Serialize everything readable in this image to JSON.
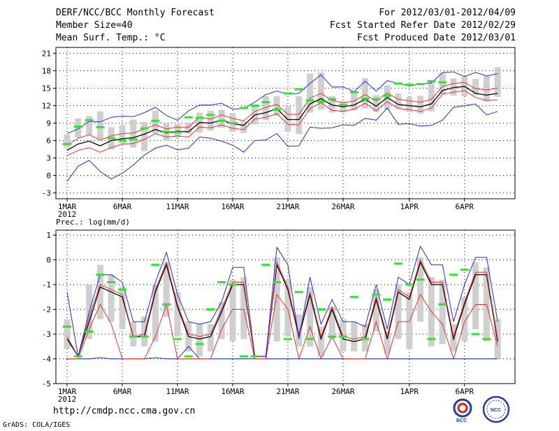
{
  "header": {
    "title": "DERF/NCC/BCC Monthly Forecast",
    "member_size": "Member Size=40",
    "variable": "Mean Surf. Temp.: °C",
    "forecast_period": "For 2012/03/01-2012/04/09",
    "started_refer": "Fcst Started Refer Date 2012/02/29",
    "produced": "Fcst Produced Date 2012/03/01"
  },
  "footer": {
    "url": "http://cmdp.ncc.cma.gov.cn",
    "grads": "GrADS: COLA/IGES",
    "logo_bcc": "BCC",
    "logo_ncc": "NCC"
  },
  "colors": {
    "box": "#cfcfcf",
    "mean": "#000000",
    "spread": "#e3342f",
    "envelope": "#1f2fd8",
    "obs": "#2ee62e",
    "grid": "#000000"
  },
  "chart_data": [
    {
      "type": "line",
      "name": "temperature",
      "title": "",
      "ylabel": "Mean Surf. Temp.: °C",
      "ylim": [
        -4,
        22
      ],
      "yticks": [
        -3,
        0,
        3,
        6,
        9,
        12,
        15,
        18,
        21
      ],
      "xticks": [
        {
          "day": 1,
          "label": "1MAR",
          "sub": "2012"
        },
        {
          "day": 6,
          "label": "6MAR"
        },
        {
          "day": 11,
          "label": "11MAR"
        },
        {
          "day": 16,
          "label": "16MAR"
        },
        {
          "day": 21,
          "label": "21MAR"
        },
        {
          "day": 26,
          "label": "26MAR"
        },
        {
          "day": 32,
          "label": "1APR"
        },
        {
          "day": 37,
          "label": "6APR"
        }
      ],
      "grid": true,
      "series": [
        {
          "name": "min-envelope",
          "values": [
            -1,
            1.6,
            2.6,
            0.7,
            -0.6,
            0.4,
            1.8,
            3.5,
            4.7,
            5.2,
            4.4,
            4.7,
            6.6,
            6.4,
            5.9,
            5.2,
            4.0,
            6.0,
            6.1,
            7.2,
            5.0,
            5.1,
            8.3,
            8.1,
            8.2,
            8.7,
            8.6,
            9.8,
            9.5,
            11.6,
            8.8,
            8.9,
            8.5,
            8.6,
            9.5,
            11.7,
            12.0,
            12.3,
            10.4,
            11.0
          ]
        },
        {
          "name": "lower-spread",
          "values": [
            3.4,
            4.3,
            4.8,
            4.0,
            4.8,
            5.4,
            5.5,
            6.2,
            7.2,
            6.6,
            6.8,
            6.6,
            8.3,
            8.2,
            8.7,
            8.1,
            7.9,
            9.7,
            10.0,
            10.6,
            8.8,
            8.7,
            11.5,
            12.5,
            11.2,
            11.0,
            11.4,
            12.4,
            11.1,
            12.7,
            11.5,
            11.3,
            11.0,
            11.6,
            14.0,
            14.3,
            14.6,
            13.4,
            12.9,
            13.0
          ]
        },
        {
          "name": "ensemble-mean",
          "values": [
            4.3,
            5.4,
            5.9,
            5.1,
            6.0,
            6.3,
            6.5,
            7.1,
            7.9,
            7.3,
            7.6,
            7.5,
            9.1,
            9.0,
            9.5,
            8.9,
            8.6,
            10.4,
            10.8,
            11.5,
            9.6,
            9.6,
            12.3,
            13.2,
            12.1,
            11.8,
            12.1,
            13.1,
            11.9,
            13.4,
            12.2,
            12.0,
            11.8,
            12.3,
            14.6,
            15.1,
            15.3,
            14.1,
            13.8,
            14.1
          ]
        },
        {
          "name": "upper-spread",
          "values": [
            5.2,
            6.4,
            7.0,
            6.1,
            6.8,
            7.2,
            7.3,
            8.0,
            8.7,
            8.0,
            8.3,
            8.3,
            10.0,
            9.7,
            10.4,
            9.8,
            9.4,
            11.0,
            11.7,
            12.2,
            10.5,
            10.5,
            13.3,
            14.1,
            12.9,
            12.5,
            12.8,
            13.9,
            12.8,
            14.2,
            13.1,
            12.8,
            12.6,
            13.1,
            15.3,
            15.8,
            16.0,
            14.9,
            14.7,
            15.0
          ]
        },
        {
          "name": "max-envelope",
          "values": [
            7.2,
            8.0,
            9.3,
            9.2,
            10.0,
            10.2,
            10.1,
            10.8,
            11.7,
            10.3,
            9.5,
            11.1,
            12.1,
            12.1,
            12.4,
            11.4,
            11.5,
            12.6,
            13.9,
            14.5,
            14.0,
            14.1,
            15.8,
            17.3,
            15.2,
            15.2,
            14.4,
            16.2,
            14.5,
            16.3,
            15.8,
            15.4,
            15.7,
            15.9,
            17.7,
            17.8,
            17.0,
            17.7,
            17.1,
            17.5
          ]
        }
      ],
      "boxes": [
        [
          4.8,
          7.0
        ],
        [
          6.5,
          9.8
        ],
        [
          7.0,
          10.2
        ],
        [
          6.3,
          11.0
        ],
        [
          4.5,
          8.3
        ],
        [
          5.5,
          8.6
        ],
        [
          4.8,
          9.6
        ],
        [
          4.2,
          9.2
        ],
        [
          7.2,
          11.1
        ],
        [
          6.0,
          8.9
        ],
        [
          6.5,
          8.8
        ],
        [
          7.2,
          9.0
        ],
        [
          7.4,
          10.8
        ],
        [
          7.7,
          11.1
        ],
        [
          8.2,
          11.3
        ],
        [
          7.5,
          10.7
        ],
        [
          7.3,
          9.3
        ],
        [
          8.8,
          12.2
        ],
        [
          9.5,
          13.6
        ],
        [
          10.3,
          13.6
        ],
        [
          7.5,
          11.9
        ],
        [
          7.1,
          13.6
        ],
        [
          10.8,
          17.5
        ],
        [
          11.3,
          17.7
        ],
        [
          10.8,
          13.6
        ],
        [
          10.8,
          12.7
        ],
        [
          11.2,
          14.3
        ],
        [
          11.5,
          16.7
        ],
        [
          10.9,
          13.8
        ],
        [
          11.3,
          15.5
        ],
        [
          11.5,
          14.1
        ],
        [
          10.9,
          13.5
        ],
        [
          10.6,
          13.7
        ],
        [
          11.0,
          16.2
        ],
        [
          14.0,
          17.6
        ],
        [
          13.7,
          16.7
        ],
        [
          13.6,
          17.0
        ],
        [
          13.8,
          16.6
        ],
        [
          12.7,
          17.1
        ],
        [
          13.5,
          18.6
        ]
      ],
      "obs_marks": [
        5.4,
        8.4,
        9.5,
        8.3,
        6.4,
        6.0,
        6.2,
        8.1,
        9.4,
        7.5,
        7.4,
        10.0,
        9.9,
        10.4,
        9.4,
        9.0,
        11.6,
        12.0,
        12.6,
        11.3,
        14.1,
        14.8,
        12.9,
        12.7,
        13.1,
        12.1,
        14.3,
        13.2,
        13.1,
        13.7,
        15.8,
        15.6,
        15.7,
        16.2,
        16.0
      ]
    },
    {
      "type": "line",
      "name": "precipitation",
      "title": "",
      "ylabel": "Prec.: log(mm/d)",
      "ylim": [
        -5,
        1.2
      ],
      "yticks": [
        -5,
        -4,
        -3,
        -2,
        -1,
        0,
        1
      ],
      "xticks": [
        {
          "day": 1,
          "label": "1MAR",
          "sub": "2012"
        },
        {
          "day": 6,
          "label": "6MAR"
        },
        {
          "day": 11,
          "label": "11MAR"
        },
        {
          "day": 16,
          "label": "16MAR"
        },
        {
          "day": 21,
          "label": "21MAR"
        },
        {
          "day": 26,
          "label": "26MAR"
        },
        {
          "day": 32,
          "label": "1APR"
        },
        {
          "day": 37,
          "label": "6APR"
        }
      ],
      "grid": true,
      "series": [
        {
          "name": "min-envelope",
          "values": [
            -4,
            -4,
            -4,
            -3.95,
            -4,
            -4,
            -4,
            -4,
            -3.95,
            -4,
            -4,
            -3.5,
            -4,
            -4,
            -4,
            -4,
            -4,
            -4,
            -4,
            -4,
            -4,
            -4,
            -4,
            -4,
            -4,
            -4,
            -4,
            -4,
            -4,
            -4,
            -4,
            -4,
            -4,
            -4,
            -4,
            -4,
            -4,
            -4,
            -4,
            -4
          ]
        },
        {
          "name": "lower-spread",
          "values": [
            -4,
            -4,
            -2.8,
            -1.8,
            -2.6,
            -4,
            -4,
            -4,
            -3.1,
            -1.8,
            -4,
            -4,
            -4,
            -4,
            -2.8,
            -2,
            -2,
            -4,
            -4,
            -1.4,
            -2,
            -4,
            -2.7,
            -4,
            -3.1,
            -4,
            -4,
            -4,
            -2.5,
            -4,
            -2.5,
            -2.5,
            -1.4,
            -2.1,
            -2.6,
            -4,
            -2.5,
            -1.8,
            -1.8,
            -3.5
          ]
        },
        {
          "name": "ensemble-mean",
          "values": [
            -3.2,
            -3.9,
            -2.5,
            -1.1,
            -1.3,
            -1.5,
            -3.1,
            -3.1,
            -1.3,
            -0.2,
            -1.9,
            -3.1,
            -3.2,
            -3.1,
            -2.1,
            -1.0,
            -1.0,
            -3.9,
            -3.9,
            -0.2,
            -1.2,
            -3.1,
            -1.4,
            -3.2,
            -2.0,
            -3.2,
            -3.3,
            -3.2,
            -1.6,
            -3.2,
            -1.3,
            -1.6,
            -0.1,
            -1.0,
            -1.0,
            -3.2,
            -1.8,
            -0.6,
            -0.6,
            -3.3
          ]
        },
        {
          "name": "upper-spread",
          "values": [
            -3.1,
            -3.9,
            -2.3,
            -1.0,
            -1.2,
            -1.4,
            -3.1,
            -3.0,
            -1.2,
            -0.1,
            -1.8,
            -3.0,
            -3.1,
            -3.0,
            -2.0,
            -0.9,
            -0.9,
            -3.9,
            -3.9,
            -0.1,
            -1.1,
            -3.0,
            -1.3,
            -3.1,
            -1.9,
            -3.1,
            -3.2,
            -3.1,
            -1.5,
            -3.1,
            -1.2,
            -1.5,
            0.0,
            -0.9,
            -0.9,
            -3.1,
            -1.7,
            -0.5,
            -0.5,
            -3.2
          ]
        },
        {
          "name": "max-envelope",
          "values": [
            -1.3,
            -3.9,
            -2.1,
            -0.6,
            -0.6,
            -0.9,
            -2.5,
            -2.5,
            -0.9,
            0.3,
            -1.4,
            -2.5,
            -2.6,
            -2.5,
            -1.7,
            -0.3,
            -0.3,
            -3.9,
            -3.9,
            0.5,
            -0.2,
            -3.2,
            -0.7,
            -2.6,
            -1.6,
            -2.5,
            -2.5,
            -2.7,
            -1.0,
            -2.8,
            -0.7,
            -1.0,
            0.55,
            -0.2,
            -0.2,
            -2.5,
            -1.0,
            0.1,
            0.1,
            -2.5
          ]
        }
      ],
      "boxes": [
        [
          -3.6,
          -2.4
        ],
        [
          -3.9,
          -3.9
        ],
        [
          -3.2,
          -1.0
        ],
        [
          -2.4,
          -0.2
        ],
        [
          -2.5,
          -0.6
        ],
        [
          -2.8,
          -1.1
        ],
        [
          -3.5,
          -2.5
        ],
        [
          -3.5,
          -2.3
        ],
        [
          -3.3,
          -1.0
        ],
        [
          -2.3,
          -0.1
        ],
        [
          -3.1,
          -1.3
        ],
        [
          -3.7,
          -2.5
        ],
        [
          -3.9,
          -2.6
        ],
        [
          -3.7,
          -2.6
        ],
        [
          -3.2,
          -1.7
        ],
        [
          -3.3,
          -0.8
        ],
        [
          -3.2,
          -0.7
        ],
        [
          -3.9,
          -3.9
        ],
        [
          -3.9,
          -3.9
        ],
        [
          -3.3,
          0.1
        ],
        [
          -3.1,
          -0.8
        ],
        [
          -3.5,
          -2.2
        ],
        [
          -3.5,
          -1.1
        ],
        [
          -3.9,
          -2.7
        ],
        [
          -3.2,
          -1.9
        ],
        [
          -3.7,
          -2.4
        ],
        [
          -3.7,
          -2.5
        ],
        [
          -3.7,
          -2.6
        ],
        [
          -2.9,
          -1.2
        ],
        [
          -3.8,
          -2.9
        ],
        [
          -3.2,
          -1.0
        ],
        [
          -3.6,
          -1.3
        ],
        [
          -2.5,
          0.1
        ],
        [
          -3.5,
          -0.7
        ],
        [
          -3.4,
          -0.8
        ],
        [
          -3.7,
          -2.6
        ],
        [
          -3.3,
          -1.5
        ],
        [
          -2.8,
          -0.1
        ],
        [
          -3.3,
          -0.3
        ],
        [
          -4.0,
          -2.4
        ]
      ],
      "obs_marks": [
        -2.7,
        -3.9,
        -2.9,
        -0.6,
        -0.9,
        -1.2,
        -3.1,
        -3.1,
        -0.2,
        -1.8,
        -3.2,
        -3.9,
        -3.4,
        -2.0,
        -0.9,
        -1.0,
        -3.9,
        -3.9,
        -0.2,
        -0.9,
        -3.2,
        -1.3,
        -3.2,
        -2.0,
        -3.1,
        -3.1,
        -1.5,
        -3.2,
        -1.4,
        -1.6,
        -0.15,
        -1.0,
        -0.8,
        -3.2,
        -1.8,
        -0.6,
        -0.4,
        -3.0,
        -3.2
      ]
    }
  ]
}
